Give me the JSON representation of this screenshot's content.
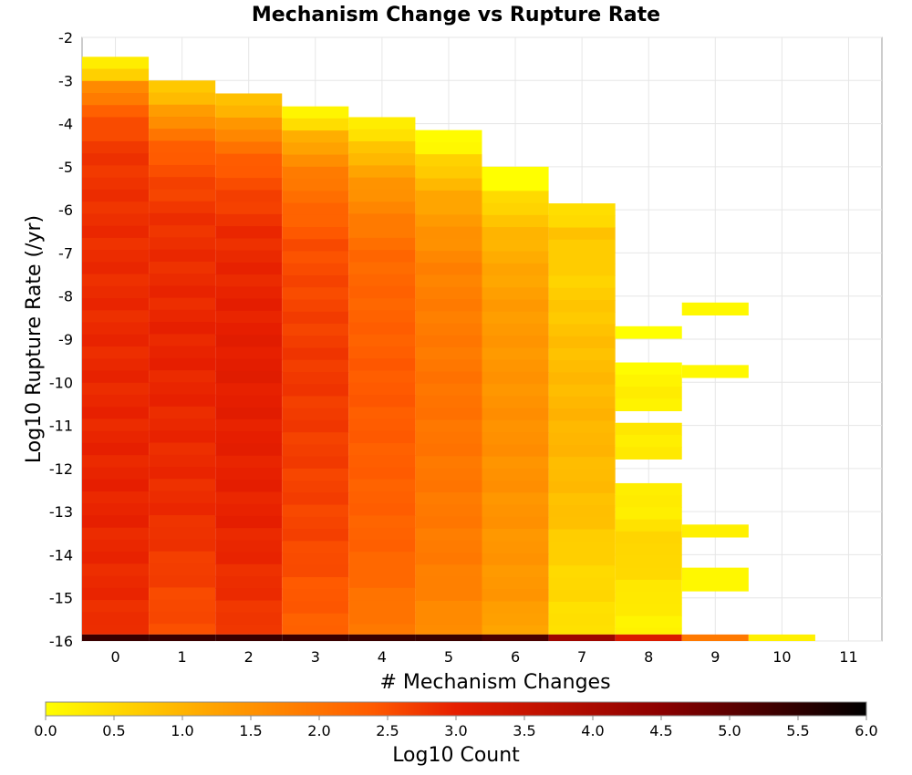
{
  "chart_data": {
    "type": "heatmap",
    "title": "Mechanism Change vs Rupture Rate",
    "xlabel": "# Mechanism Changes",
    "ylabel": "Log10 Rupture Rate (/yr)",
    "xlim": [
      -0.5,
      11.5
    ],
    "ylim": [
      -16,
      -2
    ],
    "x_ticks": [
      0,
      1,
      2,
      3,
      4,
      5,
      6,
      7,
      8,
      9,
      10,
      11
    ],
    "y_ticks": [
      -2,
      -3,
      -4,
      -5,
      -6,
      -7,
      -8,
      -9,
      -10,
      -11,
      -12,
      -13,
      -14,
      -15,
      -16
    ],
    "y_bin_width": 0.28,
    "grid": true,
    "colorbar": {
      "label": "Log10 Count",
      "min": 0.0,
      "max": 6.0,
      "ticks": [
        "0.0",
        "0.5",
        "1.0",
        "1.5",
        "2.0",
        "2.5",
        "3.0",
        "3.5",
        "4.0",
        "4.5",
        "5.0",
        "5.5",
        "6.0"
      ],
      "colors": [
        "#ffff00",
        "#ffa500",
        "#ff5a00",
        "#e61e00",
        "#8c0000",
        "#000000"
      ],
      "color_stops": [
        0.0,
        0.2,
        0.4,
        0.5,
        0.75,
        1.0
      ]
    },
    "columns": [
      {
        "x": 0,
        "y_top": -2.45,
        "count_profile": [
          [
            0.2,
            0.3
          ],
          [
            0.5,
            1.5
          ],
          [
            1.2,
            2.4
          ],
          [
            2.0,
            2.75
          ],
          [
            4.0,
            2.85
          ],
          [
            10.0,
            2.95
          ],
          [
            13.2,
            2.85
          ]
        ],
        "bottom_row": 5.4
      },
      {
        "x": 1,
        "y_top": -3.0,
        "count_profile": [
          [
            0.2,
            0.8
          ],
          [
            0.8,
            1.6
          ],
          [
            1.5,
            2.4
          ],
          [
            3.0,
            2.8
          ],
          [
            6.0,
            2.95
          ],
          [
            10.0,
            2.85
          ],
          [
            12.6,
            2.5
          ]
        ],
        "bottom_row": 5.4
      },
      {
        "x": 2,
        "y_top": -3.3,
        "count_profile": [
          [
            0.2,
            0.9
          ],
          [
            0.8,
            1.7
          ],
          [
            1.5,
            2.4
          ],
          [
            3.0,
            2.85
          ],
          [
            6.0,
            3.05
          ],
          [
            10.0,
            2.95
          ],
          [
            12.3,
            2.75
          ]
        ],
        "bottom_row": 5.4
      },
      {
        "x": 3,
        "y_top": -3.6,
        "count_profile": [
          [
            0.15,
            0.2
          ],
          [
            0.6,
            1.1
          ],
          [
            1.5,
            1.9
          ],
          [
            3.0,
            2.5
          ],
          [
            6.0,
            2.75
          ],
          [
            10.0,
            2.6
          ],
          [
            12.0,
            2.3
          ]
        ],
        "bottom_row": 5.4
      },
      {
        "x": 4,
        "y_top": -3.85,
        "count_profile": [
          [
            0.2,
            0.3
          ],
          [
            0.7,
            0.9
          ],
          [
            1.5,
            1.5
          ],
          [
            3.0,
            2.15
          ],
          [
            6.0,
            2.4
          ],
          [
            10.0,
            2.25
          ],
          [
            11.7,
            1.9
          ]
        ],
        "bottom_row": 5.4
      },
      {
        "x": 5,
        "y_top": -4.15,
        "count_profile": [
          [
            0.3,
            0.1
          ],
          [
            0.6,
            0.6
          ],
          [
            1.5,
            1.2
          ],
          [
            3.0,
            1.75
          ],
          [
            6.0,
            2.0
          ],
          [
            10.0,
            1.85
          ],
          [
            11.4,
            1.6
          ]
        ],
        "bottom_row": 5.4
      },
      {
        "x": 6,
        "y_top": -5.0,
        "count_profile": [
          [
            0.3,
            0.0
          ],
          [
            0.6,
            0.5
          ],
          [
            1.5,
            1.0
          ],
          [
            3.0,
            1.35
          ],
          [
            6.0,
            1.55
          ],
          [
            10.0,
            1.4
          ],
          [
            10.6,
            1.2
          ]
        ],
        "bottom_row": 5.2
      },
      {
        "x": 7,
        "y_top": -5.85,
        "count_profile": [
          [
            0.3,
            0.5
          ],
          [
            0.6,
            0.8
          ],
          [
            1.5,
            0.6
          ],
          [
            3.0,
            0.85
          ],
          [
            5.0,
            1.0
          ],
          [
            7.0,
            0.85
          ],
          [
            8.0,
            0.6
          ],
          [
            9.7,
            0.4
          ]
        ],
        "bottom_row": 4.2
      },
      {
        "x": 8,
        "y_top": -8.7,
        "count_profile": [
          [
            0.3,
            0.0
          ],
          [
            1.4,
            0.2
          ],
          [
            2.8,
            0.3
          ],
          [
            4.0,
            0.2
          ],
          [
            5.0,
            0.6
          ],
          [
            6.5,
            0.2
          ],
          [
            7.4,
            0.15
          ]
        ],
        "gaps": [
          [
            -9.55,
            -8.95
          ],
          [
            -11.0,
            -10.7
          ],
          [
            -12.2,
            -11.9
          ]
        ],
        "bottom_row": 3.2
      },
      {
        "x": 9,
        "y_segments": [
          [
            -8.45,
            -8.15
          ],
          [
            -9.9,
            -9.6
          ],
          [
            -13.6,
            -13.3
          ],
          [
            -14.85,
            -14.3
          ]
        ],
        "segment_counts": [
          0.1,
          0.1,
          0.2,
          0.1
        ],
        "bottom_row": 1.9
      },
      {
        "x": 10,
        "y_segments": [],
        "segment_counts": [],
        "bottom_row": 0.2
      },
      {
        "x": 11,
        "y_segments": [],
        "segment_counts": [],
        "bottom_row": null
      }
    ]
  }
}
